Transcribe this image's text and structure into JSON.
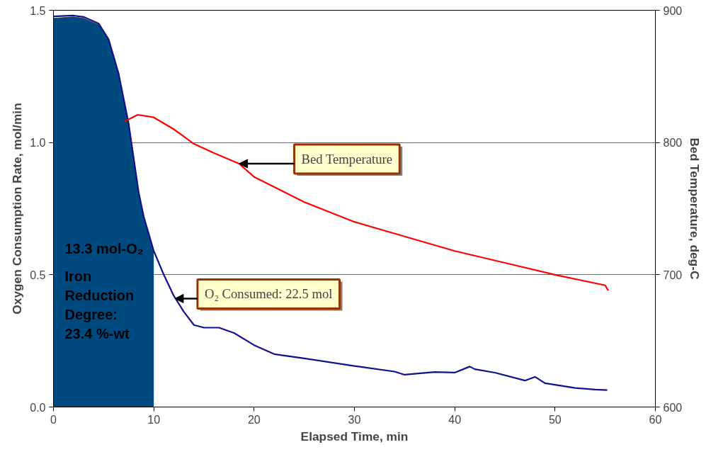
{
  "chart_data": {
    "type": "line",
    "xlabel": "Elapsed Time, min",
    "ylabel": "Oxygen Consumption Rate, mol/min",
    "y2label": "Bed Temperature, deg-C",
    "xlim": [
      0,
      60
    ],
    "xticks": [
      0,
      10,
      20,
      30,
      40,
      50,
      60
    ],
    "ylim": [
      0,
      1.5
    ],
    "yticks": [
      {
        "value": 0,
        "label": "0.0"
      },
      {
        "value": 0.5,
        "label": "0.5"
      },
      {
        "value": 1,
        "label": "1.0"
      },
      {
        "value": 1.5,
        "label": "1.5"
      }
    ],
    "y2lim": [
      600,
      900
    ],
    "y2ticks": [
      600,
      700,
      800,
      900
    ],
    "grid": "y",
    "line_style": "solid",
    "marker": "none",
    "series": [
      {
        "type": "area",
        "color": "#004a80",
        "x": [
          0,
          2,
          3,
          4.5,
          5.5,
          6.5,
          7.5,
          8.5,
          9,
          10
        ],
        "values": [
          1.47,
          1.475,
          1.47,
          1.445,
          1.385,
          1.255,
          1.065,
          0.805,
          0.715,
          0.585
        ]
      },
      {
        "color": "#10108c",
        "x": [
          0,
          2,
          3,
          4.5,
          5.5,
          6.5,
          7.5,
          8.5,
          9,
          10,
          11,
          12,
          13,
          14,
          15,
          16.5,
          18,
          20,
          22,
          25,
          30,
          34,
          35,
          38,
          40,
          41.5,
          42,
          44,
          47,
          48,
          49,
          52,
          54,
          55.2
        ],
        "values": [
          1.477,
          1.48,
          1.475,
          1.45,
          1.39,
          1.26,
          1.07,
          0.81,
          0.72,
          0.59,
          0.5,
          0.42,
          0.36,
          0.31,
          0.3,
          0.3,
          0.28,
          0.234,
          0.2,
          0.184,
          0.155,
          0.134,
          0.122,
          0.132,
          0.13,
          0.153,
          0.143,
          0.13,
          0.1,
          0.114,
          0.09,
          0.072,
          0.066,
          0.064
        ]
      },
      {
        "color": "#ff0000",
        "axis": "y2",
        "x": [
          7.1,
          8.4,
          10,
          12,
          14,
          16,
          18.5,
          20,
          25,
          30,
          35,
          40,
          45,
          50,
          55,
          55.3
        ],
        "values": [
          816,
          821,
          819,
          810,
          799,
          792,
          784,
          774,
          755,
          740,
          729,
          718,
          709,
          700,
          692,
          688
        ]
      }
    ],
    "annotations": [
      {
        "text": "Bed Temperature",
        "x": 18.5,
        "y": 0.92
      },
      {
        "text": "O₂ Consumed: 22.5 mol",
        "x": 12.1,
        "y": 0.41
      },
      "13.3 mol-O₂",
      "Iron Reduction Degree: 23.4 %-wt"
    ]
  }
}
